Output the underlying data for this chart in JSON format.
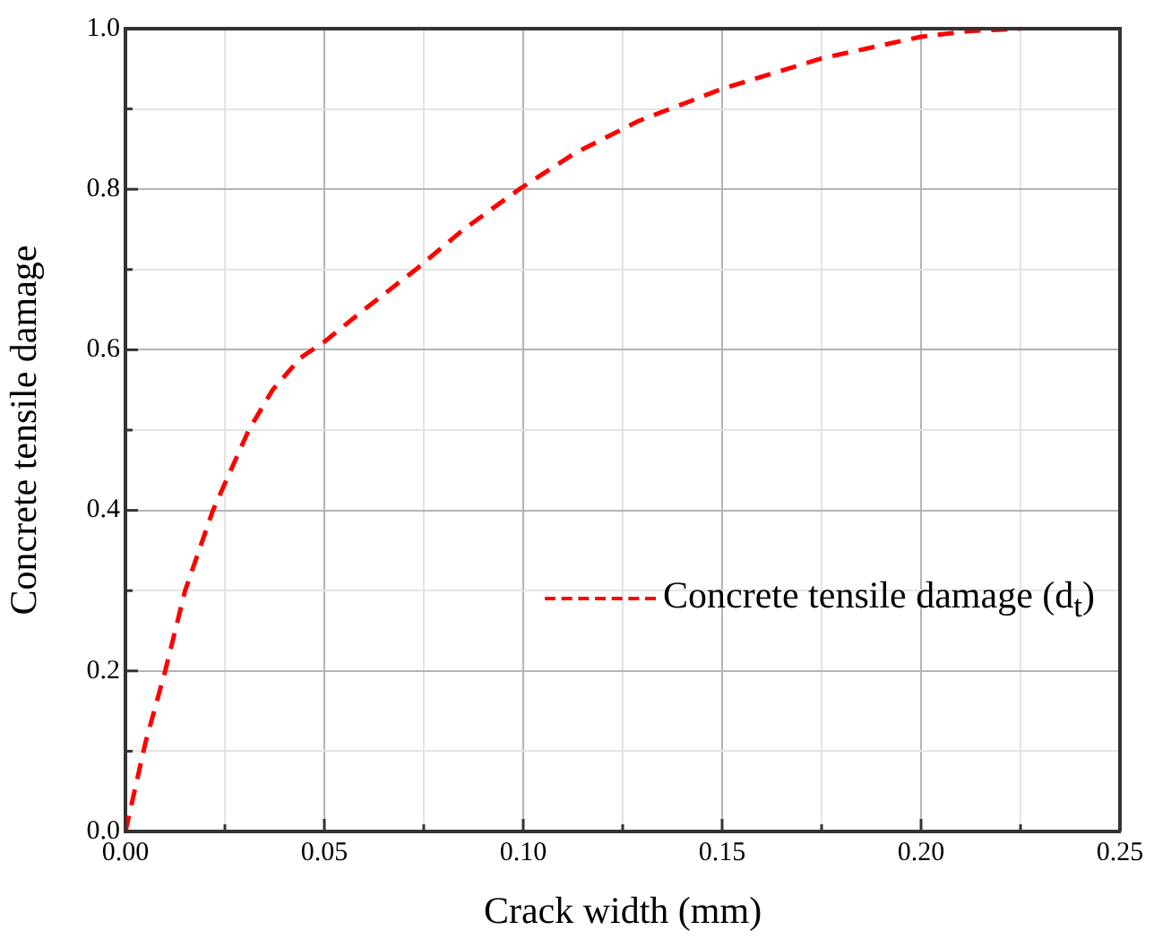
{
  "chart_data": {
    "type": "line",
    "xlabel": "Crack width (mm)",
    "ylabel": "Concrete tensile damage",
    "x": [
      0,
      0.005,
      0.01,
      0.015,
      0.022,
      0.031,
      0.037,
      0.044,
      0.05,
      0.06,
      0.073,
      0.085,
      0.099,
      0.113,
      0.129,
      0.15,
      0.175,
      0.2,
      0.212,
      0.225
    ],
    "series": [
      {
        "name": "Concrete tensile damage (d$_{t}$)",
        "color": "#ff0000",
        "values": [
          0,
          0.11,
          0.2,
          0.3,
          0.4,
          0.5,
          0.55,
          0.59,
          0.61,
          0.65,
          0.7,
          0.75,
          0.8,
          0.845,
          0.885,
          0.925,
          0.963,
          0.99,
          0.997,
          1.0
        ]
      }
    ],
    "xlim": [
      0,
      0.25
    ],
    "ylim": [
      0,
      1
    ],
    "xticks": [
      {
        "value": 0,
        "label": "0.00"
      },
      {
        "value": 0.025,
        "label": null
      },
      {
        "value": 0.05,
        "label": "0.05"
      },
      {
        "value": 0.075,
        "label": null
      },
      {
        "value": 0.1,
        "label": "0.10"
      },
      {
        "value": 0.125,
        "label": null
      },
      {
        "value": 0.15,
        "label": "0.15"
      },
      {
        "value": 0.175,
        "label": null
      },
      {
        "value": 0.2,
        "label": "0.20"
      },
      {
        "value": 0.225,
        "label": null
      },
      {
        "value": 0.25,
        "label": "0.25"
      }
    ],
    "yticks": [
      {
        "value": 0,
        "label": "0.0"
      },
      {
        "value": 0.1,
        "label": null
      },
      {
        "value": 0.2,
        "label": "0.2"
      },
      {
        "value": 0.3,
        "label": null
      },
      {
        "value": 0.4,
        "label": "0.4"
      },
      {
        "value": 0.5,
        "label": null
      },
      {
        "value": 0.6,
        "label": "0.6"
      },
      {
        "value": 0.7,
        "label": null
      },
      {
        "value": 0.8,
        "label": "0.8"
      },
      {
        "value": 0.9,
        "label": null
      },
      {
        "value": 1,
        "label": "1.0"
      }
    ],
    "grid": true,
    "legend": "right",
    "marker": "none",
    "line_style": "dashed"
  }
}
